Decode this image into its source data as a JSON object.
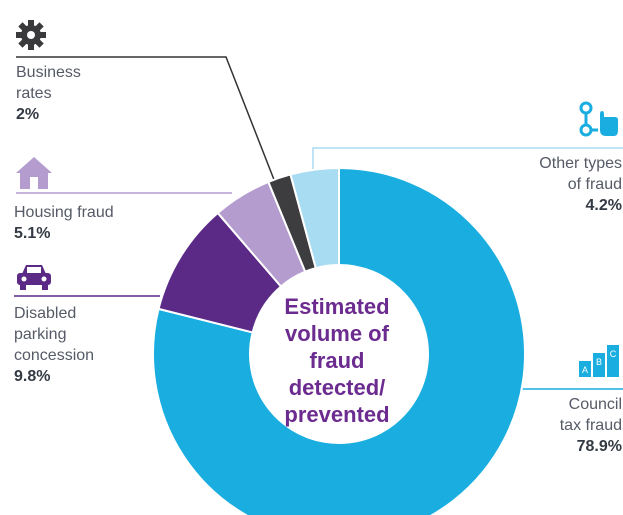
{
  "chart_data": {
    "type": "pie",
    "title": "Estimated\nvolume of\nfraud detected/\nprevented",
    "categories": [
      "Council tax fraud",
      "Disabled parking concession",
      "Housing fraud",
      "Business rates",
      "Other types of fraud"
    ],
    "label_texts": [
      "Council\ntax fraud",
      "Disabled\nparking\nconcession",
      "Housing fraud",
      "Business\nrates",
      "Other types\nof fraud"
    ],
    "values": [
      78.9,
      9.8,
      5.1,
      2.0,
      4.2
    ],
    "value_labels": [
      "78.9%",
      "9.8%",
      "5.1%",
      "2%",
      "4.2%"
    ],
    "colors": [
      "#1aaee0",
      "#5b2a86",
      "#b49ccf",
      "#3d3d3f",
      "#a8dcf2"
    ],
    "icons": [
      "bar-chart-abc-icon",
      "car-icon",
      "house-icon",
      "gear-icon",
      "network-hand-icon"
    ],
    "donut": true
  }
}
